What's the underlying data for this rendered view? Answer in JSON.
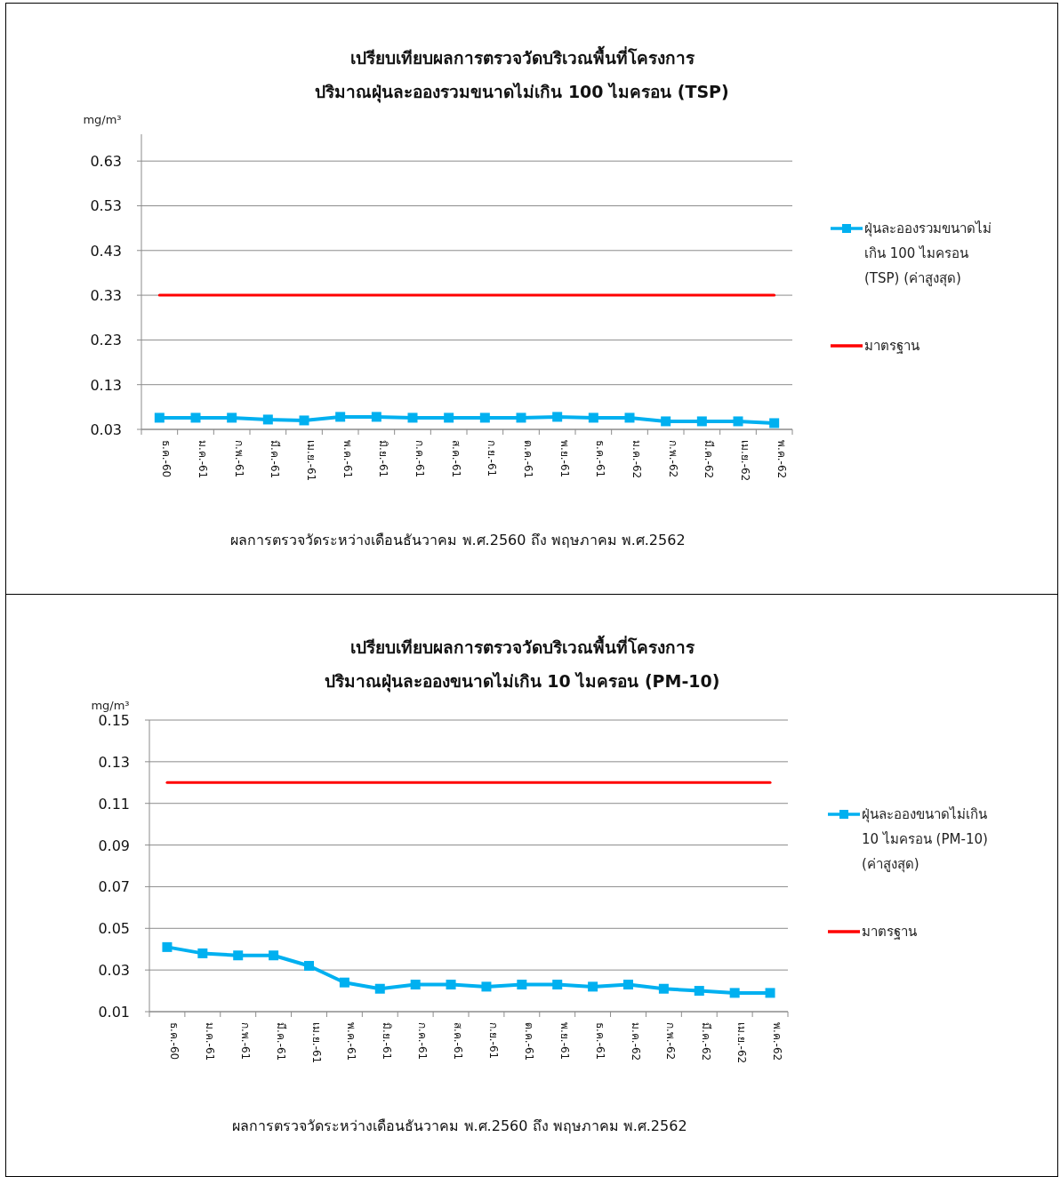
{
  "chart_data": [
    {
      "type": "line",
      "title": "เปรียบเทียบผลการตรวจวัดบริเวณพื้นที่โครงการ",
      "subtitle": "ปริมาณฝุ่นละอองรวมขนาดไม่เกิน  100 ไมครอน (TSP)",
      "ylabel": "mg/m³",
      "annotations": [
        "ผลการตรวจวัดระหว่างเดือนธันวาคม พ.ศ.2560 ถึง พฤษภาคม พ.ศ.2562"
      ],
      "categories": [
        "ธ.ค.-60",
        "ม.ค.-61",
        "ก.พ.-61",
        "มี.ค.-61",
        "เม.ย.-61",
        "พ.ค.-61",
        "มิ.ย.-61",
        "ก.ค.-61",
        "ส.ค.-61",
        "ก.ย.-61",
        "ต.ค.-61",
        "พ.ย.-61",
        "ธ.ค.-61",
        "ม.ค.-62",
        "ก.พ.-62",
        "มี.ค.-62",
        "เม.ย.-62",
        "พ.ค.-62"
      ],
      "ylim": [
        0.03,
        0.69
      ],
      "yticks": [
        0.03,
        0.13,
        0.23,
        0.33,
        0.43,
        0.53,
        0.63
      ],
      "grid": "y",
      "legend": "right",
      "line_style": "solid",
      "series": [
        {
          "name": "ฝุ่นละอองรวมขนาดไม่เกิน 100 ไมครอน (TSP) (ค่าสูงสุด)",
          "color": "#00b0f0",
          "marker": "square",
          "values": [
            0.056,
            0.056,
            0.056,
            0.052,
            0.05,
            0.058,
            0.058,
            0.056,
            0.056,
            0.056,
            0.056,
            0.058,
            0.056,
            0.056,
            0.048,
            0.048,
            0.048,
            0.044
          ]
        },
        {
          "name": "มาตรฐาน",
          "color": "#ff0000",
          "marker": "none",
          "values": [
            0.33,
            0.33,
            0.33,
            0.33,
            0.33,
            0.33,
            0.33,
            0.33,
            0.33,
            0.33,
            0.33,
            0.33,
            0.33,
            0.33,
            0.33,
            0.33,
            0.33,
            0.33
          ]
        }
      ]
    },
    {
      "type": "line",
      "title": "เปรียบเทียบผลการตรวจวัดบริเวณพื้นที่โครงการ",
      "subtitle": "ปริมาณฝุ่นละอองขนาดไม่เกิน  10 ไมครอน (PM-10)",
      "ylabel": "mg/m³",
      "annotations": [
        "ผลการตรวจวัดระหว่างเดือนธันวาคม พ.ศ.2560 ถึง พฤษภาคม พ.ศ.2562"
      ],
      "categories": [
        "ธ.ค.-60",
        "ม.ค.-61",
        "ก.พ.-61",
        "มี.ค.-61",
        "เม.ย.-61",
        "พ.ค.-61",
        "มิ.ย.-61",
        "ก.ค.-61",
        "ส.ค.-61",
        "ก.ย.-61",
        "ต.ค.-61",
        "พ.ย.-61",
        "ธ.ค.-61",
        "ม.ค.-62",
        "ก.พ.-62",
        "มี.ค.-62",
        "เม.ย.-62",
        "พ.ค.-62"
      ],
      "ylim": [
        0.01,
        0.15
      ],
      "yticks": [
        0.01,
        0.03,
        0.05,
        0.07,
        0.09,
        0.11,
        0.13,
        0.15
      ],
      "grid": "y",
      "legend": "right",
      "line_style": "solid",
      "series": [
        {
          "name": "ฝุ่นละอองขนาดไม่เกิน 10 ไมครอน (PM-10) (ค่าสูงสุด)",
          "color": "#00b0f0",
          "marker": "square",
          "values": [
            0.041,
            0.038,
            0.037,
            0.037,
            0.032,
            0.024,
            0.021,
            0.023,
            0.023,
            0.022,
            0.023,
            0.023,
            0.022,
            0.023,
            0.021,
            0.02,
            0.019,
            0.019
          ]
        },
        {
          "name": "มาตรฐาน",
          "color": "#ff0000",
          "marker": "none",
          "values": [
            0.12,
            0.12,
            0.12,
            0.12,
            0.12,
            0.12,
            0.12,
            0.12,
            0.12,
            0.12,
            0.12,
            0.12,
            0.12,
            0.12,
            0.12,
            0.12,
            0.12,
            0.12
          ]
        }
      ]
    }
  ]
}
